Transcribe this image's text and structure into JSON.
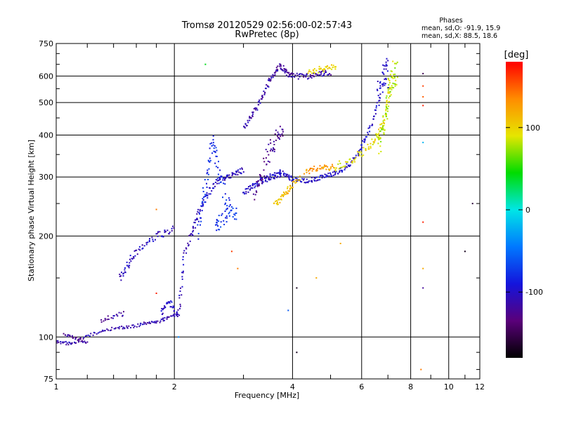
{
  "chart_data": {
    "type": "scatter",
    "title": "Tromsø 20120529 02:56:00-02:57:43",
    "subtitle": "RwPretec (8p)",
    "xlabel": "Frequency [MHz]",
    "ylabel": "Stationary phase Virtual Height [km]",
    "x_scale": "log",
    "y_scale": "log",
    "xlim": [
      1,
      12
    ],
    "ylim": [
      75,
      750
    ],
    "x_ticks": [
      "1",
      "2",
      "4",
      "6",
      "8",
      "10",
      "12"
    ],
    "y_ticks": [
      "75",
      "100",
      "200",
      "300",
      "400",
      "500",
      "600",
      "750"
    ],
    "grid": true,
    "phases_box": {
      "heading": "Phases",
      "line1": "mean, sd,O: -91.9, 15.9",
      "line2": "mean, sd,X:  88.5, 18.6"
    },
    "colorbar": {
      "label": "[deg]",
      "ticks": [
        "100",
        "0",
        "-100"
      ],
      "range": [
        -180,
        180
      ],
      "palette": [
        "#000000",
        "#5a007a",
        "#1414dc",
        "#0078ff",
        "#00e6e6",
        "#00dc00",
        "#e6e600",
        "#ff8c00",
        "#ff0000"
      ]
    },
    "traces": [
      {
        "x": [
          1.0,
          1.05,
          1.1,
          1.2,
          1.3,
          1.4,
          1.5,
          1.6,
          1.7,
          1.8,
          1.9,
          2.0,
          2.05
        ],
        "y": [
          97,
          96,
          95,
          101,
          104,
          106,
          107,
          108,
          110,
          111,
          113,
          116,
          118
        ],
        "phase": -110,
        "spread": 2
      },
      {
        "x": [
          1.05,
          1.1,
          1.15,
          1.2
        ],
        "y": [
          102,
          100,
          98,
          96
        ],
        "phase": -120,
        "spread": 2
      },
      {
        "x": [
          1.3,
          1.4,
          1.5
        ],
        "y": [
          112,
          115,
          118
        ],
        "phase": -115,
        "spread": 3
      },
      {
        "x": [
          1.85,
          1.9,
          1.95,
          2.0
        ],
        "y": [
          118,
          124,
          128,
          118
        ],
        "phase": -100,
        "spread": 3
      },
      {
        "x": [
          2.05,
          2.08,
          2.12,
          2.2,
          2.25,
          2.3,
          2.4,
          2.5,
          2.6,
          2.7,
          2.8,
          2.9,
          3.0
        ],
        "y": [
          115,
          140,
          175,
          200,
          215,
          235,
          260,
          280,
          295,
          300,
          305,
          310,
          315
        ],
        "phase": -105,
        "spread": 4
      },
      {
        "x": [
          2.3,
          2.35,
          2.4,
          2.45,
          2.5,
          2.55,
          2.6,
          2.7,
          2.8
        ],
        "y": [
          210,
          240,
          280,
          330,
          380,
          350,
          300,
          260,
          230
        ],
        "phase": -80,
        "spread": 14
      },
      {
        "x": [
          2.55,
          2.6,
          2.7,
          2.8,
          2.9
        ],
        "y": [
          210,
          220,
          230,
          240,
          230
        ],
        "phase": -75,
        "spread": 10
      },
      {
        "x": [
          1.45,
          1.5,
          1.55,
          1.6,
          1.7,
          1.8,
          1.9,
          2.0
        ],
        "y": [
          150,
          160,
          170,
          180,
          190,
          200,
          205,
          210
        ],
        "phase": -105,
        "spread": 5
      },
      {
        "x": [
          3.0,
          3.1,
          3.2,
          3.3,
          3.4,
          3.5,
          3.6,
          3.7,
          3.75
        ],
        "y": [
          270,
          278,
          285,
          290,
          295,
          300,
          302,
          306,
          310
        ],
        "phase": -100,
        "spread": 4
      },
      {
        "x": [
          3.75,
          3.9,
          4.0,
          4.2,
          4.4,
          4.6,
          4.8,
          5.0,
          5.2,
          5.4,
          5.6,
          5.8,
          6.0,
          6.2,
          6.4,
          6.6
        ],
        "y": [
          310,
          300,
          295,
          292,
          293,
          296,
          300,
          305,
          310,
          318,
          328,
          345,
          370,
          400,
          440,
          500
        ],
        "phase": -100,
        "spread": 3
      },
      {
        "x": [
          3.2,
          3.3,
          3.4,
          3.5,
          3.6,
          3.7,
          3.8
        ],
        "y": [
          260,
          290,
          330,
          360,
          380,
          400,
          410
        ],
        "phase": -125,
        "spread": 14
      },
      {
        "x": [
          3.0,
          3.1,
          3.2,
          3.3,
          3.4,
          3.5,
          3.6,
          3.7,
          3.8,
          3.9,
          4.0,
          4.2,
          4.4,
          4.6,
          4.8,
          5.0
        ],
        "y": [
          420,
          445,
          470,
          505,
          540,
          580,
          620,
          640,
          630,
          605,
          600,
          598,
          600,
          605,
          610,
          615
        ],
        "phase": -115,
        "spread": 4
      },
      {
        "x": [
          3.6,
          3.7,
          3.8,
          3.9,
          4.0,
          4.2
        ],
        "y": [
          250,
          255,
          265,
          275,
          285,
          300
        ],
        "phase": 110,
        "spread": 4
      },
      {
        "x": [
          4.3,
          4.5,
          4.7,
          4.9,
          5.1
        ],
        "y": [
          310,
          315,
          320,
          318,
          322
        ],
        "phase": 130,
        "spread": 4
      },
      {
        "x": [
          5.1,
          5.4,
          5.7,
          6.0,
          6.3,
          6.5,
          6.7,
          6.9,
          7.0,
          7.1
        ],
        "y": [
          320,
          330,
          340,
          355,
          370,
          390,
          420,
          460,
          520,
          580
        ],
        "phase": 95,
        "spread": 6
      },
      {
        "x": [
          4.4,
          4.6,
          4.8,
          5.0,
          5.2
        ],
        "y": [
          620,
          625,
          630,
          640,
          640
        ],
        "phase": 100,
        "spread": 4
      },
      {
        "x": [
          6.6,
          6.7,
          6.8,
          6.9,
          7.0,
          7.1,
          7.2,
          7.3,
          7.4
        ],
        "y": [
          360,
          390,
          430,
          470,
          520,
          560,
          600,
          620,
          600
        ],
        "phase": 80,
        "spread": 20
      },
      {
        "x": [
          6.6,
          6.7,
          6.8,
          6.9,
          7.0
        ],
        "y": [
          520,
          560,
          600,
          630,
          600
        ],
        "phase": -100,
        "spread": 20
      }
    ],
    "extra_points": [
      {
        "x": 8.6,
        "y": 610,
        "phase": -150
      },
      {
        "x": 8.6,
        "y": 560,
        "phase": 160
      },
      {
        "x": 8.6,
        "y": 520,
        "phase": 150
      },
      {
        "x": 8.6,
        "y": 490,
        "phase": 170
      },
      {
        "x": 8.6,
        "y": 380,
        "phase": -20
      },
      {
        "x": 8.6,
        "y": 220,
        "phase": 170
      },
      {
        "x": 8.6,
        "y": 160,
        "phase": 120
      },
      {
        "x": 8.6,
        "y": 140,
        "phase": -120
      },
      {
        "x": 8.5,
        "y": 80,
        "phase": 140
      },
      {
        "x": 11.0,
        "y": 180,
        "phase": -170
      },
      {
        "x": 11.5,
        "y": 250,
        "phase": -160
      },
      {
        "x": 2.4,
        "y": 650,
        "phase": 40
      },
      {
        "x": 2.8,
        "y": 180,
        "phase": 160
      },
      {
        "x": 2.9,
        "y": 160,
        "phase": 140
      },
      {
        "x": 4.1,
        "y": 140,
        "phase": -170
      },
      {
        "x": 4.1,
        "y": 90,
        "phase": -170
      },
      {
        "x": 3.9,
        "y": 120,
        "phase": -60
      },
      {
        "x": 4.6,
        "y": 150,
        "phase": 120
      },
      {
        "x": 5.3,
        "y": 190,
        "phase": 120
      },
      {
        "x": 1.8,
        "y": 240,
        "phase": 140
      },
      {
        "x": 1.8,
        "y": 135,
        "phase": 170
      },
      {
        "x": 2.05,
        "y": 100,
        "phase": -40
      }
    ]
  }
}
